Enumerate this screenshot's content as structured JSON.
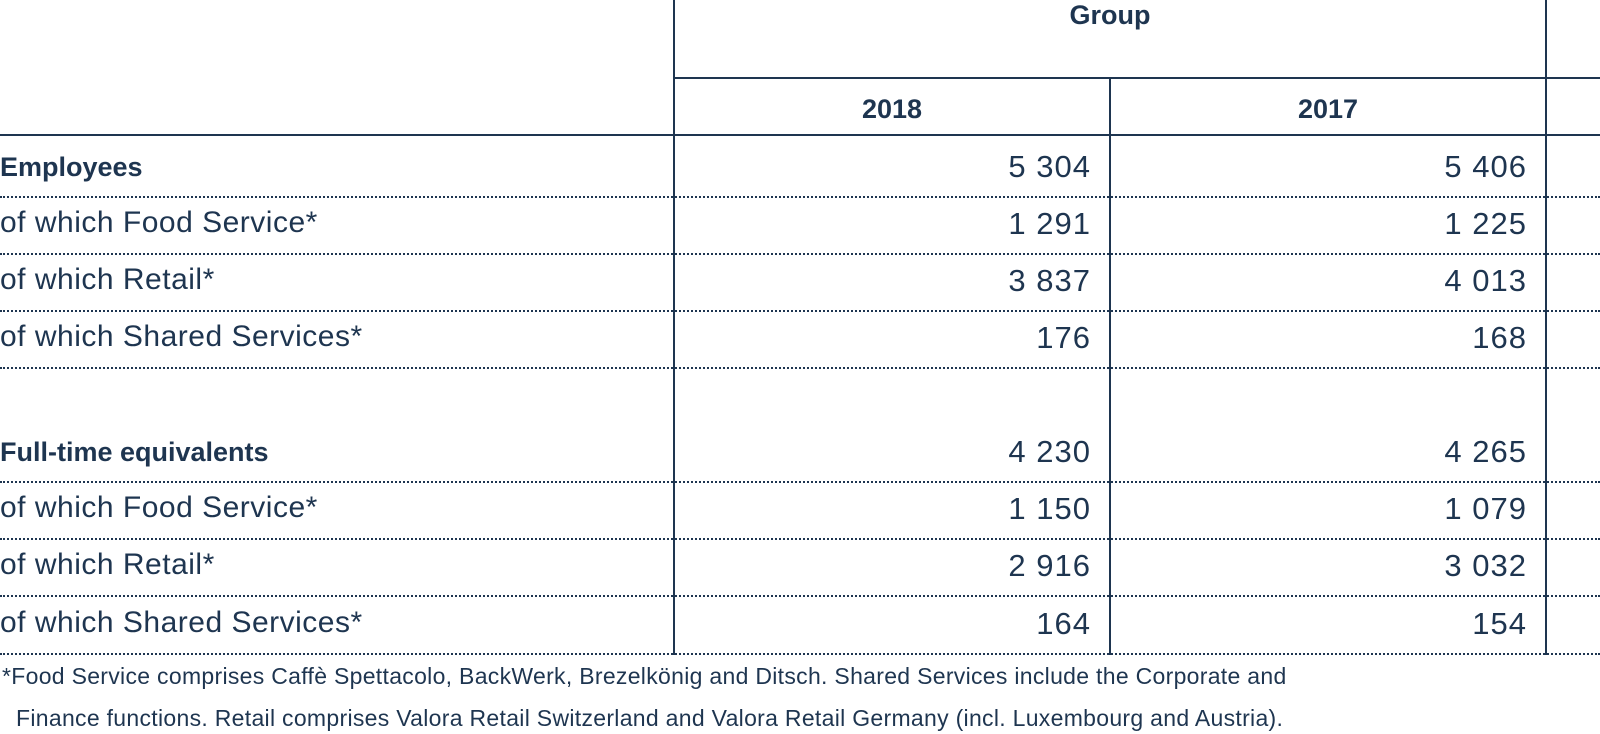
{
  "header": {
    "group_label": "Group",
    "year_1": "2018",
    "year_2": "2017"
  },
  "sections": [
    {
      "title": "Employees",
      "total": [
        "5 304",
        "5 406"
      ],
      "rows": [
        {
          "label": "of which Food Service*",
          "values": [
            "1 291",
            "1 225"
          ]
        },
        {
          "label": "of which Retail*",
          "values": [
            "3 837",
            "4 013"
          ]
        },
        {
          "label": "of which Shared Services*",
          "values": [
            "176",
            "168"
          ]
        }
      ]
    },
    {
      "title": "Full-time equivalents",
      "total": [
        "4 230",
        "4 265"
      ],
      "rows": [
        {
          "label": "of which Food Service*",
          "values": [
            "1 150",
            "1 079"
          ]
        },
        {
          "label": "of which Retail*",
          "values": [
            "2 916",
            "3 032"
          ]
        },
        {
          "label": "of which Shared Services*",
          "values": [
            "164",
            "154"
          ]
        }
      ]
    }
  ],
  "footnote": {
    "line1": "*Food Service comprises Caffè Spettacolo, BackWerk, Brezelkönig and Ditsch. Shared Services include the Corporate and",
    "line2": "Finance functions. Retail comprises Valora Retail Switzerland and Valora Retail Germany (incl. Luxembourg and Austria)."
  }
}
